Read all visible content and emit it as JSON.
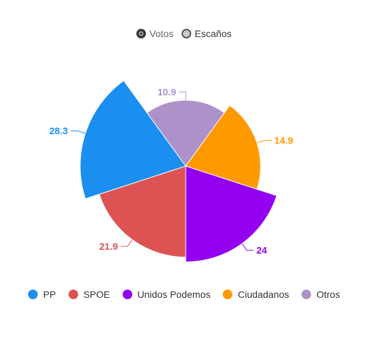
{
  "toggle": {
    "options": [
      {
        "label": "Votos",
        "selected": true
      },
      {
        "label": "Escaños",
        "selected": false
      }
    ]
  },
  "chart_data": {
    "type": "pie",
    "title": "",
    "slices": [
      {
        "label": "PP",
        "value": 28.3,
        "color": "#1a8ff0"
      },
      {
        "label": "SPOE",
        "value": 21.9,
        "color": "#dd5354"
      },
      {
        "label": "Unidos Podemos",
        "value": 24,
        "color": "#9400f0"
      },
      {
        "label": "Ciudadanos",
        "value": 14.9,
        "color": "#ff9900"
      },
      {
        "label": "Otros",
        "value": 10.9,
        "color": "#ad91c9"
      }
    ],
    "legend_position": "bottom"
  }
}
